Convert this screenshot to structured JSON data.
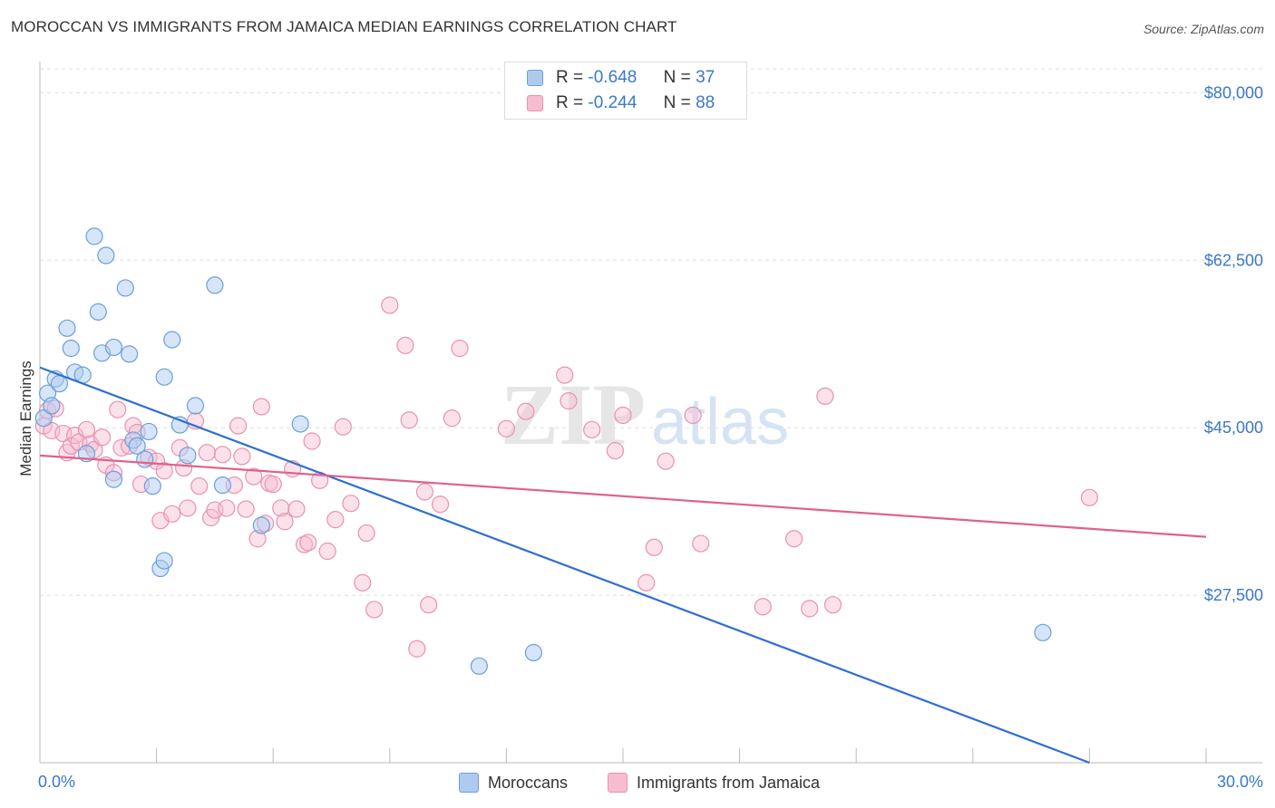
{
  "title": "MOROCCAN VS IMMIGRANTS FROM JAMAICA MEDIAN EARNINGS CORRELATION CHART",
  "source": "Source: ZipAtlas.com",
  "watermark": {
    "zip": "ZIP",
    "atlas": "atlas"
  },
  "legend": {
    "rows": [
      {
        "r_label": "R =",
        "r_value": "-0.648",
        "n_label": "N =",
        "n_value": "37"
      },
      {
        "r_label": "R =",
        "r_value": "-0.244",
        "n_label": "N =",
        "n_value": "88"
      }
    ]
  },
  "bottom_legend": {
    "series1": "Moroccans",
    "series2": "Immigrants from Jamaica"
  },
  "colors": {
    "blue_fill": "#aecbef",
    "blue_stroke": "#6a9fde",
    "blue_line": "#2f6fd0",
    "pink_fill": "#f6bdd0",
    "pink_stroke": "#e892ae",
    "pink_line": "#e0608d",
    "axis_text": "#3b78c9",
    "grid": "#dddddd"
  },
  "chart_data": {
    "type": "scatter",
    "title": "MOROCCAN VS IMMIGRANTS FROM JAMAICA MEDIAN EARNINGS CORRELATION CHART",
    "ylabel": "Median Earnings",
    "xlabel": "",
    "x_tick_labels": [
      "0.0%",
      "30.0%"
    ],
    "y_tick_labels": [
      "$80,000",
      "$62,500",
      "$45,000",
      "$27,500"
    ],
    "y_ticks": [
      80000,
      62500,
      45000,
      27500
    ],
    "xlim": [
      0,
      30
    ],
    "ylim": [
      10000,
      82500
    ],
    "grid": true,
    "series": [
      {
        "name": "Moroccans",
        "R": -0.648,
        "N": 37,
        "trend": {
          "x": [
            0,
            27
          ],
          "y": [
            51300,
            10000
          ]
        },
        "points": [
          [
            0.1,
            46000
          ],
          [
            0.2,
            48600
          ],
          [
            0.3,
            47300
          ],
          [
            0.4,
            50100
          ],
          [
            0.5,
            49600
          ],
          [
            0.8,
            53300
          ],
          [
            0.7,
            55400
          ],
          [
            0.9,
            50800
          ],
          [
            1.1,
            50500
          ],
          [
            1.2,
            42300
          ],
          [
            1.4,
            65000
          ],
          [
            1.5,
            57100
          ],
          [
            1.7,
            63000
          ],
          [
            1.6,
            52800
          ],
          [
            1.9,
            53400
          ],
          [
            2.2,
            59600
          ],
          [
            2.3,
            52700
          ],
          [
            1.9,
            39600
          ],
          [
            2.4,
            43700
          ],
          [
            2.5,
            43100
          ],
          [
            2.7,
            41700
          ],
          [
            2.8,
            44600
          ],
          [
            2.9,
            38900
          ],
          [
            3.1,
            30300
          ],
          [
            3.2,
            31100
          ],
          [
            3.2,
            50300
          ],
          [
            3.4,
            54200
          ],
          [
            3.6,
            45300
          ],
          [
            3.8,
            42100
          ],
          [
            4.0,
            47300
          ],
          [
            4.5,
            59900
          ],
          [
            4.7,
            39000
          ],
          [
            5.7,
            34800
          ],
          [
            6.7,
            45400
          ],
          [
            11.3,
            20100
          ],
          [
            12.7,
            21500
          ],
          [
            25.8,
            23600
          ]
        ]
      },
      {
        "name": "Immigrants from Jamaica",
        "R": -0.244,
        "N": 88,
        "trend": {
          "x": [
            0,
            30
          ],
          "y": [
            42100,
            33600
          ]
        },
        "points": [
          [
            0.1,
            45200
          ],
          [
            0.2,
            46800
          ],
          [
            0.3,
            44700
          ],
          [
            0.4,
            47000
          ],
          [
            0.6,
            44400
          ],
          [
            0.7,
            42400
          ],
          [
            0.8,
            43100
          ],
          [
            0.9,
            44200
          ],
          [
            1.0,
            43500
          ],
          [
            1.2,
            44800
          ],
          [
            1.3,
            43300
          ],
          [
            1.4,
            42700
          ],
          [
            1.6,
            44000
          ],
          [
            1.7,
            41100
          ],
          [
            1.9,
            40300
          ],
          [
            2.0,
            46900
          ],
          [
            2.1,
            42900
          ],
          [
            2.3,
            43100
          ],
          [
            2.4,
            45200
          ],
          [
            2.5,
            44500
          ],
          [
            2.6,
            39100
          ],
          [
            2.8,
            41900
          ],
          [
            3.0,
            41500
          ],
          [
            3.1,
            35300
          ],
          [
            3.2,
            40500
          ],
          [
            3.4,
            36000
          ],
          [
            3.6,
            42900
          ],
          [
            3.7,
            40800
          ],
          [
            3.8,
            36600
          ],
          [
            4.0,
            45700
          ],
          [
            4.1,
            38900
          ],
          [
            4.3,
            42400
          ],
          [
            4.4,
            35600
          ],
          [
            4.5,
            36400
          ],
          [
            4.7,
            42200
          ],
          [
            4.8,
            36600
          ],
          [
            5.0,
            39000
          ],
          [
            5.1,
            45200
          ],
          [
            5.2,
            42000
          ],
          [
            5.3,
            36500
          ],
          [
            5.5,
            39900
          ],
          [
            5.6,
            33400
          ],
          [
            5.7,
            47200
          ],
          [
            5.8,
            35000
          ],
          [
            5.9,
            39200
          ],
          [
            6.0,
            39100
          ],
          [
            6.2,
            36600
          ],
          [
            6.3,
            35200
          ],
          [
            6.5,
            40700
          ],
          [
            6.6,
            36500
          ],
          [
            6.8,
            32800
          ],
          [
            6.9,
            33000
          ],
          [
            7.0,
            43600
          ],
          [
            7.2,
            39500
          ],
          [
            7.4,
            32100
          ],
          [
            7.6,
            35400
          ],
          [
            7.8,
            45100
          ],
          [
            8.0,
            37100
          ],
          [
            8.3,
            28800
          ],
          [
            8.4,
            34000
          ],
          [
            8.6,
            26000
          ],
          [
            9.0,
            57800
          ],
          [
            9.4,
            53600
          ],
          [
            9.5,
            45800
          ],
          [
            9.7,
            21900
          ],
          [
            9.9,
            38300
          ],
          [
            10.0,
            26500
          ],
          [
            10.3,
            37000
          ],
          [
            10.6,
            46000
          ],
          [
            10.8,
            53300
          ],
          [
            12.0,
            44900
          ],
          [
            12.5,
            46700
          ],
          [
            13.5,
            50500
          ],
          [
            13.6,
            47800
          ],
          [
            14.2,
            44800
          ],
          [
            14.8,
            42600
          ],
          [
            15.0,
            46300
          ],
          [
            15.6,
            28800
          ],
          [
            15.8,
            32500
          ],
          [
            16.1,
            41500
          ],
          [
            16.8,
            46300
          ],
          [
            17.0,
            32900
          ],
          [
            18.6,
            26300
          ],
          [
            19.4,
            33400
          ],
          [
            19.8,
            26100
          ],
          [
            20.2,
            48300
          ],
          [
            20.4,
            26500
          ],
          [
            27.0,
            37700
          ]
        ]
      }
    ]
  }
}
